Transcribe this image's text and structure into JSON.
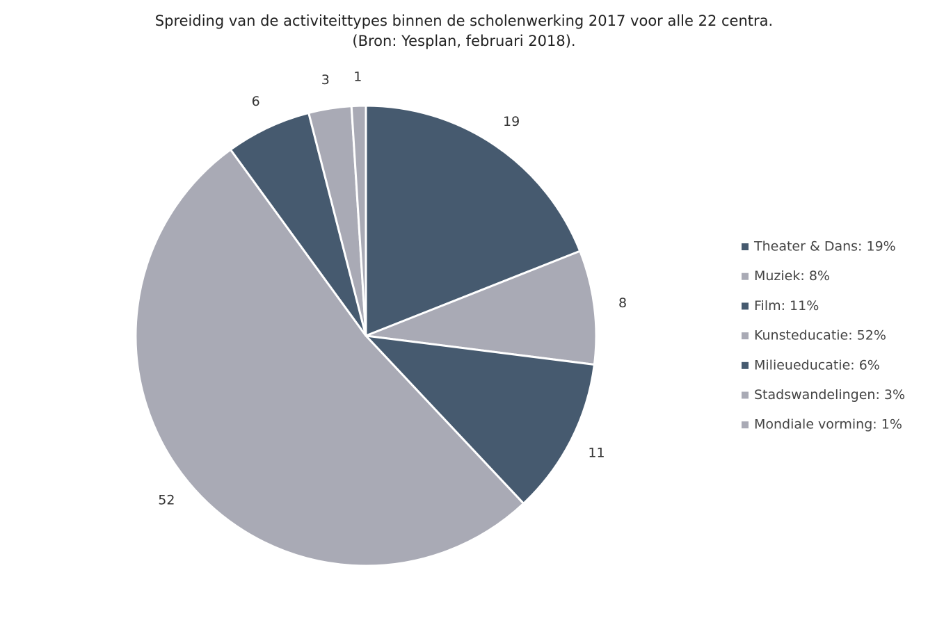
{
  "chart_data": {
    "type": "pie",
    "title": "Spreiding van de activiteittypes binnen de scholenwerking 2017 voor alle 22 centra.",
    "subtitle": "(Bron: Yesplan, februari 2018).",
    "categories": [
      "Theater & Dans: 19%",
      "Muziek: 8%",
      "Film: 11%",
      "Kunsteducatie: 52%",
      "Milieueducatie: 6%",
      "Stadswandelingen: 3%",
      "Mondiale vorming: 1%"
    ],
    "values": [
      19,
      8,
      11,
      52,
      6,
      3,
      1
    ],
    "colors": [
      "#465a6f",
      "#a9aab5",
      "#465a6f",
      "#a9aab5",
      "#465a6f",
      "#a9aab5",
      "#a9aab5"
    ],
    "legend": "right"
  }
}
